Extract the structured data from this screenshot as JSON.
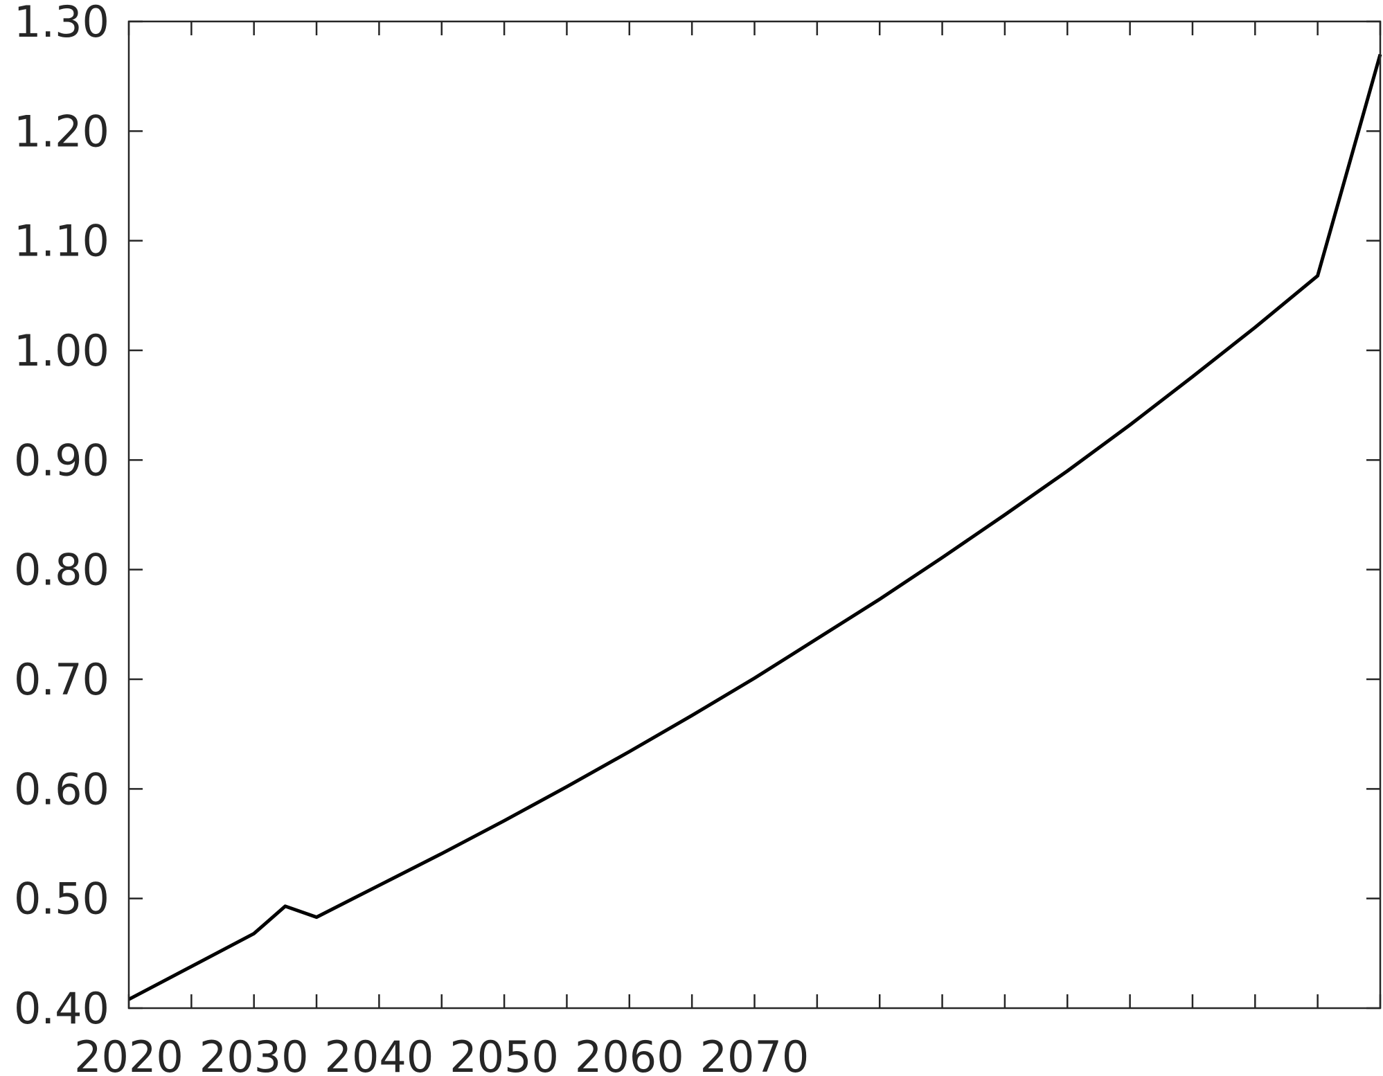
{
  "chart_data": {
    "type": "line",
    "title": "",
    "xlabel": "",
    "ylabel": "",
    "xlim": [
      2020,
      2120
    ],
    "ylim": [
      0.4,
      1.3
    ],
    "grid": false,
    "yticks": [
      0.4,
      0.5,
      0.6,
      0.7,
      0.8,
      0.9,
      1.0,
      1.1,
      1.2,
      1.3
    ],
    "ytick_labels": [
      "0.40",
      "0.50",
      "0.60",
      "0.70",
      "0.80",
      "0.90",
      "1.00",
      "1.10",
      "1.20",
      "1.30"
    ],
    "xticks": [
      2020,
      2025,
      2030,
      2035,
      2040,
      2045,
      2050,
      2055,
      2060,
      2065,
      2070,
      2075,
      2080,
      2085,
      2090,
      2095,
      2100,
      2105,
      2110,
      2115,
      2120
    ],
    "xtick_labels": [
      "2020",
      "2030",
      "2040",
      "2050",
      "2060",
      "2070"
    ],
    "xtick_label_values": [
      2020,
      2030,
      2040,
      2050,
      2060,
      2070
    ],
    "series": [
      {
        "x": [
          2020,
          2025,
          2030,
          2032.5,
          2035,
          2040,
          2045,
          2050,
          2055,
          2060,
          2065,
          2070,
          2075,
          2080,
          2085,
          2090,
          2095,
          2100,
          2105,
          2110,
          2115,
          2120
        ],
        "values": [
          0.408,
          0.438,
          0.468,
          0.493,
          0.483,
          0.512,
          0.541,
          0.571,
          0.602,
          0.634,
          0.667,
          0.701,
          0.737,
          0.773,
          0.811,
          0.85,
          0.89,
          0.932,
          0.976,
          1.021,
          1.068,
          1.27
        ],
        "color": "#000000"
      }
    ]
  }
}
